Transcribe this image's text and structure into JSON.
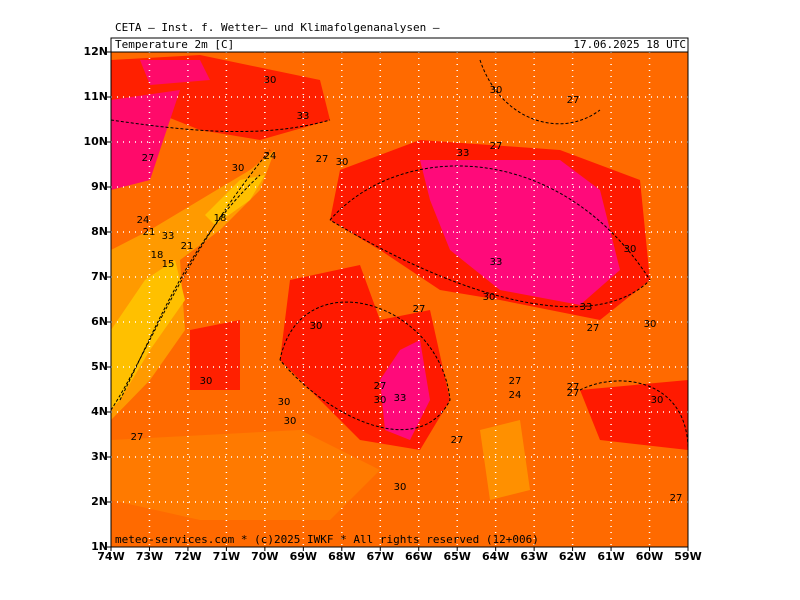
{
  "header": {
    "title": "CETA — Inst. f. Wetter— und Klimafolgenanalysen —",
    "field": "Temperature  2m  [C]",
    "valid_time": "17.06.2025  18  UTC"
  },
  "lat_labels": [
    "12N",
    "11N",
    "10N",
    "9N",
    "8N",
    "7N",
    "6N",
    "5N",
    "4N",
    "3N",
    "2N",
    "1N"
  ],
  "lon_labels": [
    "74W",
    "73W",
    "72W",
    "71W",
    "70W",
    "69W",
    "68W",
    "67W",
    "66W",
    "65W",
    "64W",
    "63W",
    "62W",
    "61W",
    "60W",
    "59W"
  ],
  "contour_labels": [
    "30",
    "33",
    "27",
    "30",
    "24",
    "27",
    "30",
    "33",
    "27",
    "30",
    "27",
    "18",
    "24",
    "21",
    "33",
    "21",
    "18",
    "15",
    "33",
    "30",
    "33",
    "27",
    "30",
    "30",
    "27",
    "30",
    "30",
    "27",
    "30",
    "33",
    "27",
    "24",
    "27",
    "27",
    "30",
    "30",
    "27",
    "27",
    "30",
    "30",
    "27"
  ],
  "footer": "meteo-services.com  *  (c)2025  IWKF  *  All  rights  reserved  (12+006)"
}
